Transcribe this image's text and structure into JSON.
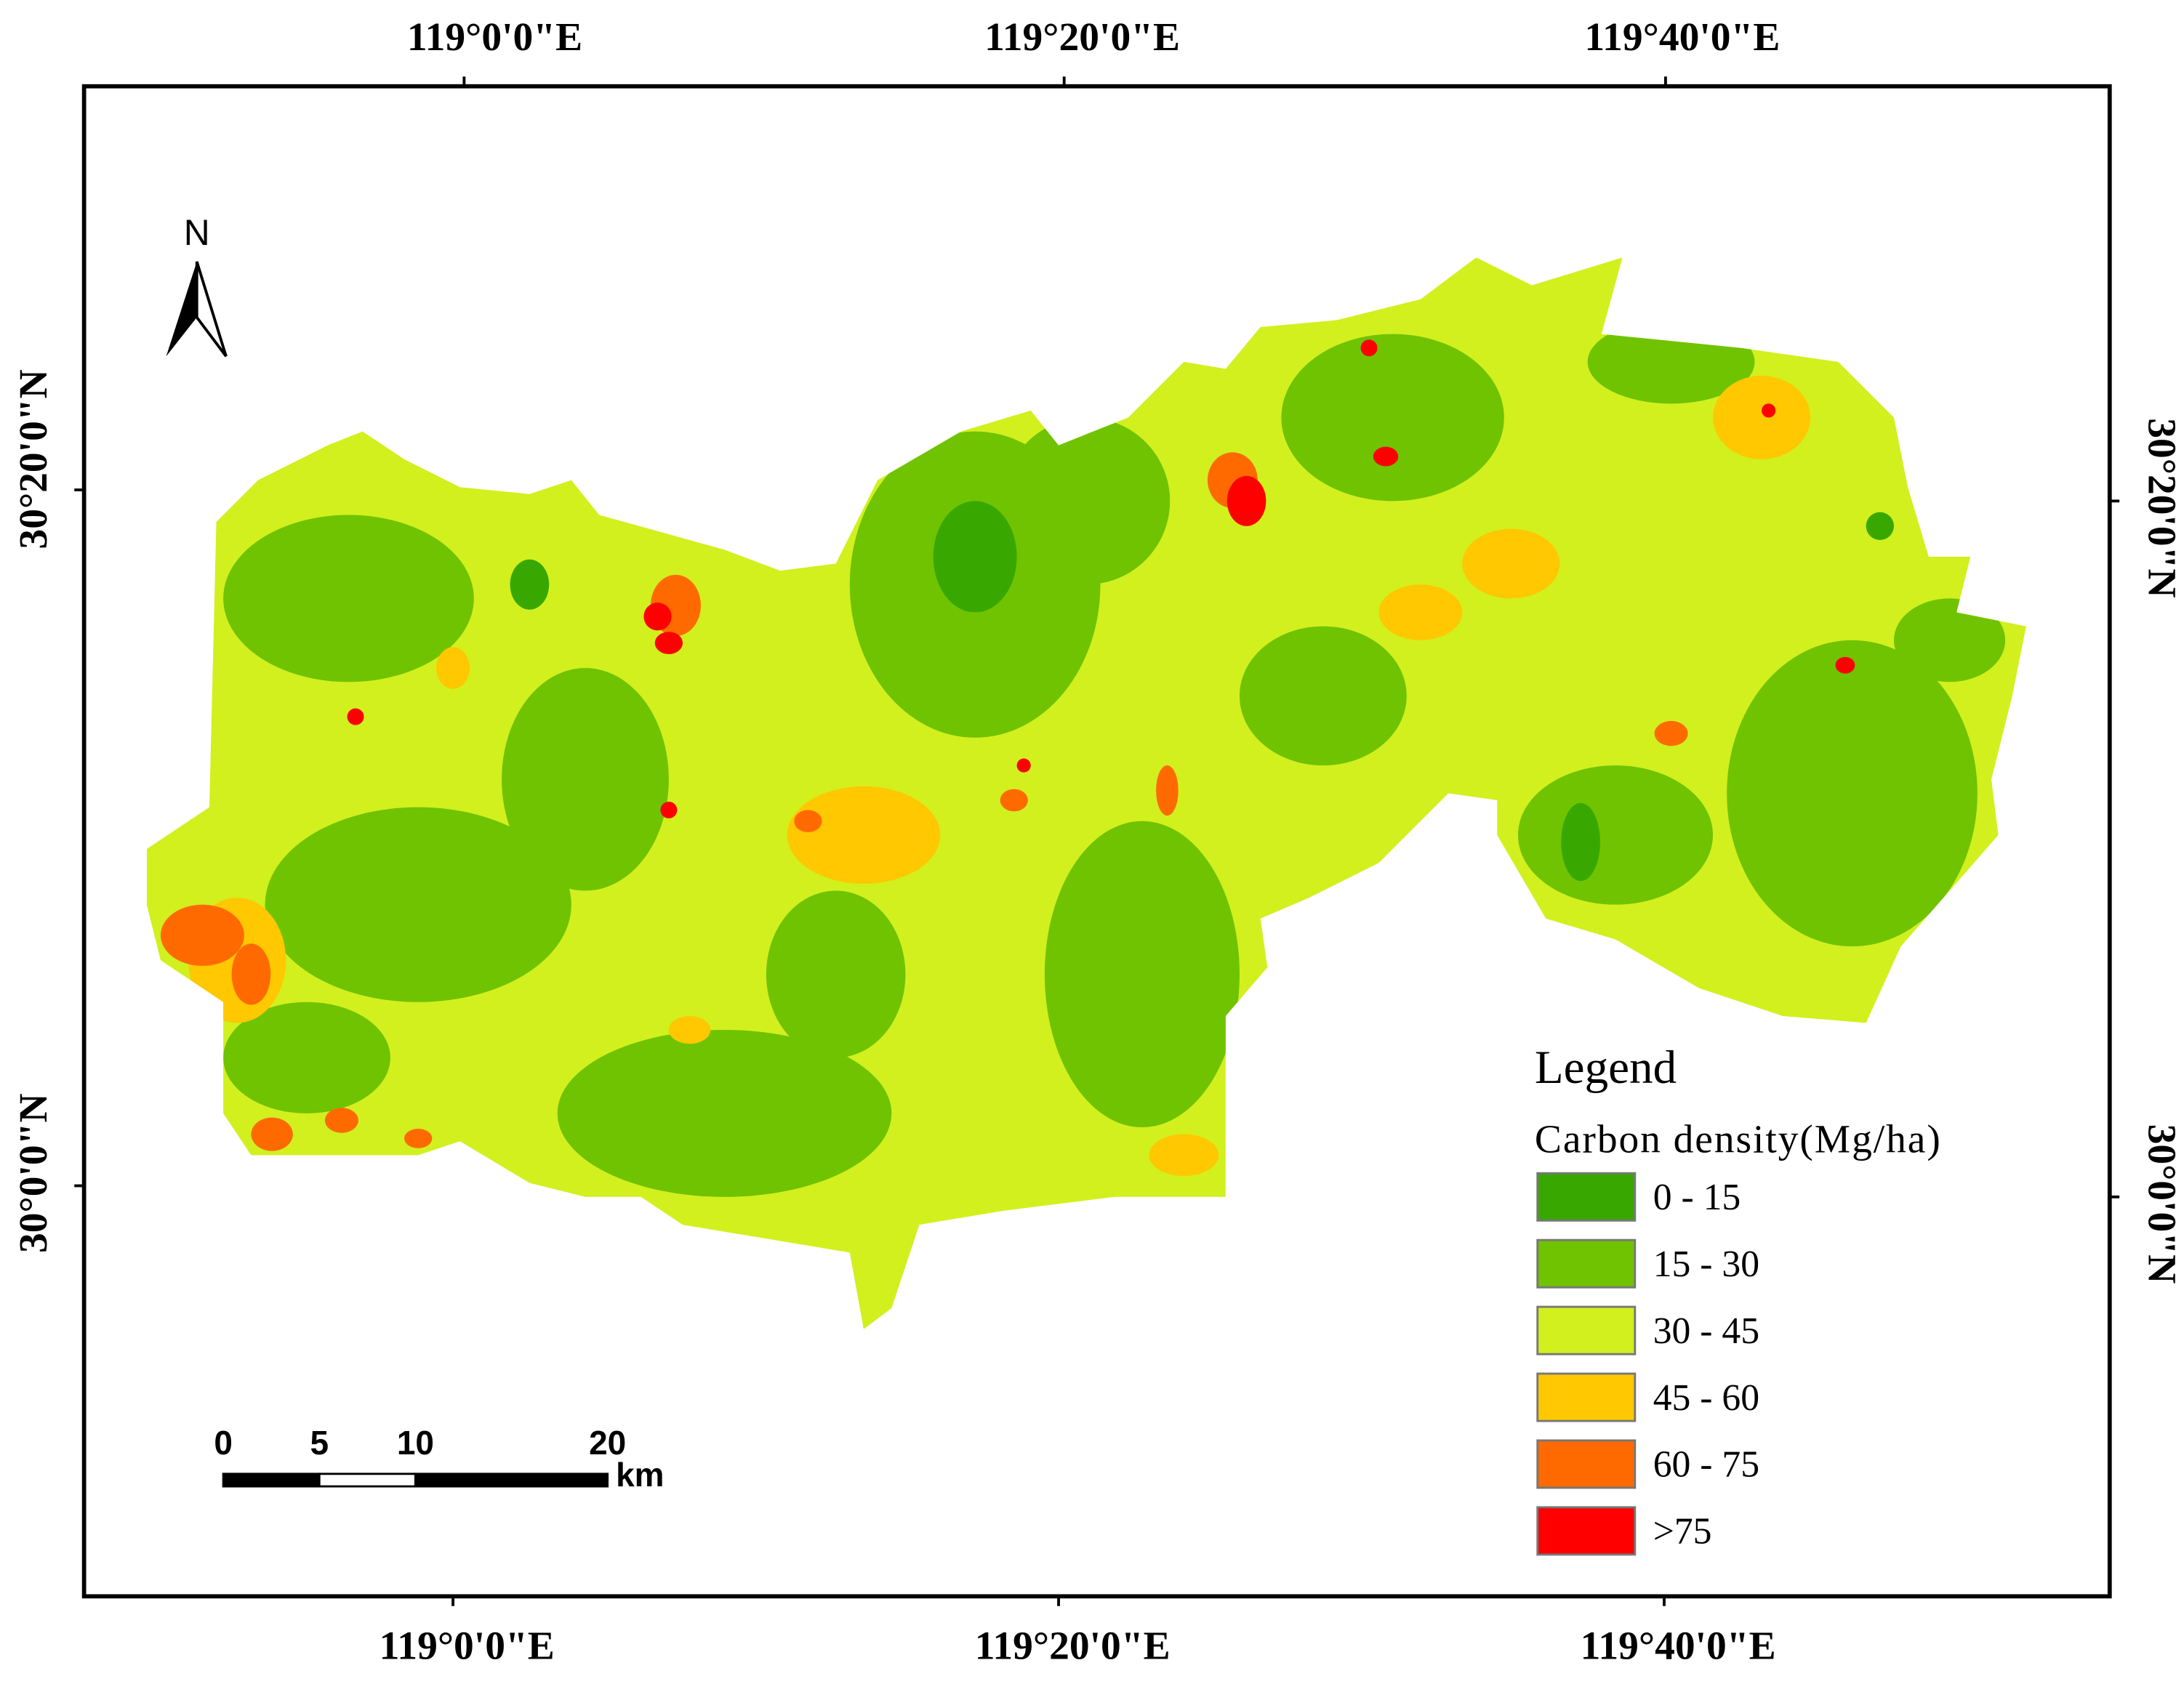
{
  "map": {
    "top_labels": [
      "119°0'0\"E",
      "119°20'0\"E",
      "119°40'0\"E"
    ],
    "bottom_labels": [
      "119°0'0\"E",
      "119°20'0\"E",
      "119°40'0\"E"
    ],
    "left_labels": [
      "30°20'0\"N",
      "30°0'0\"N"
    ],
    "right_labels": [
      "30°20'0\"N",
      "30°0'0\"N"
    ],
    "north": "N",
    "scale_bar": {
      "ticks": [
        0,
        5,
        10,
        20
      ],
      "unit": "km"
    },
    "legend": {
      "title": "Legend",
      "subtitle": "Carbon density(Mg/ha)",
      "items": [
        {
          "label": "0 - 15",
          "color": "#38a800"
        },
        {
          "label": "15 - 30",
          "color": "#6fc300"
        },
        {
          "label": "30 - 45",
          "color": "#d1f01e"
        },
        {
          "label": "45 - 60",
          "color": "#ffc800"
        },
        {
          "label": "60 - 75",
          "color": "#ff6a00"
        },
        {
          "label": ">75",
          "color": "#ff0000"
        }
      ]
    }
  }
}
